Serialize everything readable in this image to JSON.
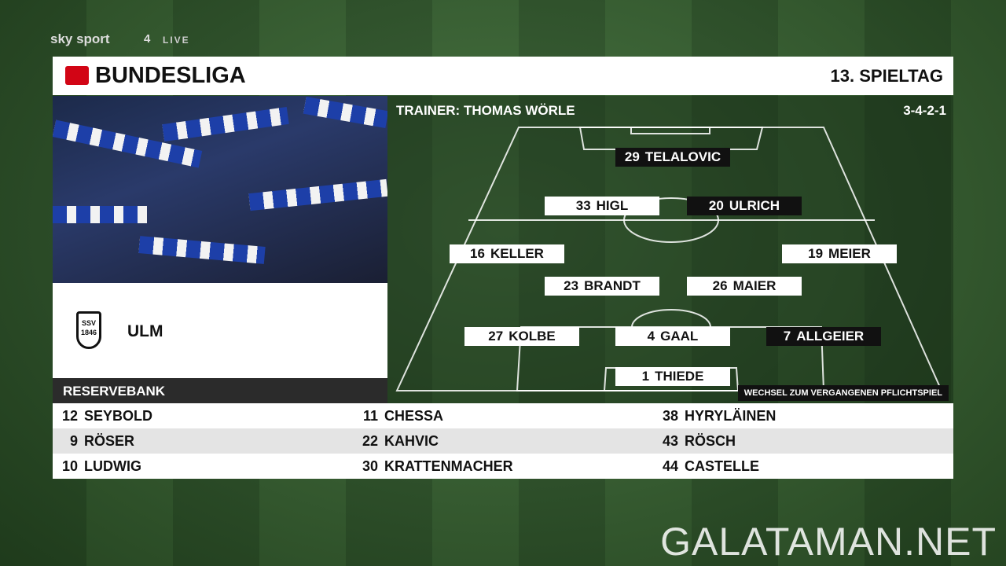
{
  "branding": {
    "broadcaster": "sky sport",
    "channel": "4",
    "live": "LIVE"
  },
  "header": {
    "league": "BUNDESLIGA",
    "matchday": "13. SPIELTAG"
  },
  "team": {
    "name": "ULM",
    "badge_top": "SSV",
    "badge_year": "1846"
  },
  "lineup": {
    "coach": "TRAINER: THOMAS WÖRLE",
    "formation": "3-4-2-1",
    "players": [
      {
        "number": 29,
        "name": "TELALOVIC",
        "changed": true
      },
      {
        "number": 33,
        "name": "HIGL",
        "changed": false
      },
      {
        "number": 20,
        "name": "ULRICH",
        "changed": true
      },
      {
        "number": 16,
        "name": "KELLER",
        "changed": false
      },
      {
        "number": 19,
        "name": "MEIER",
        "changed": false
      },
      {
        "number": 23,
        "name": "BRANDT",
        "changed": false
      },
      {
        "number": 26,
        "name": "MAIER",
        "changed": false
      },
      {
        "number": 27,
        "name": "KOLBE",
        "changed": false
      },
      {
        "number": 4,
        "name": "GAAL",
        "changed": false
      },
      {
        "number": 7,
        "name": "ALLGEIER",
        "changed": true
      },
      {
        "number": 1,
        "name": "THIEDE",
        "changed": false
      }
    ],
    "note": "WECHSEL ZUM VERGANGENEN PFLICHTSPIEL"
  },
  "bench": {
    "title": "RESERVEBANK",
    "players": [
      {
        "number": 12,
        "name": "SEYBOLD"
      },
      {
        "number": 11,
        "name": "CHESSA"
      },
      {
        "number": 38,
        "name": "HYRYLÄINEN"
      },
      {
        "number": 9,
        "name": "RÖSER"
      },
      {
        "number": 22,
        "name": "KAHVIC"
      },
      {
        "number": 43,
        "name": "RÖSCH"
      },
      {
        "number": 10,
        "name": "LUDWIG"
      },
      {
        "number": 30,
        "name": "KRATTENMACHER"
      },
      {
        "number": 44,
        "name": "CASTELLE"
      }
    ]
  },
  "watermark": "GALATAMAN.NET"
}
